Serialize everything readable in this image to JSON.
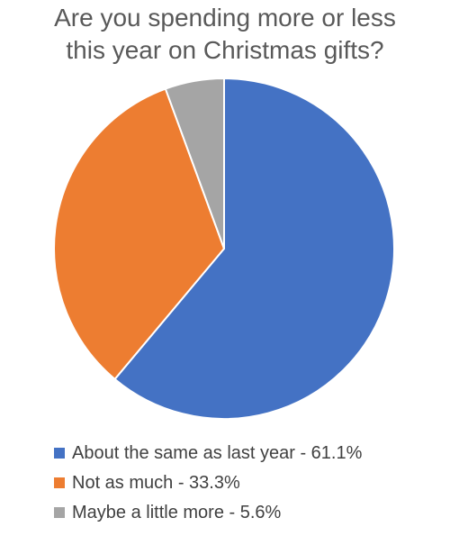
{
  "chart_data": {
    "type": "pie",
    "title_lines": [
      "Are you spending more or less",
      "this year on Christmas gifts?"
    ],
    "slices": [
      {
        "label": "About the same as last year - 61.1%",
        "value": 61.1,
        "color": "#4472C4"
      },
      {
        "label": "Not as much - 33.3%",
        "value": 33.3,
        "color": "#ED7D31"
      },
      {
        "label": "Maybe a little more - 5.6%",
        "value": 5.6,
        "color": "#A5A5A5"
      }
    ],
    "legend_position": "bottom",
    "slice_border_color": "#ffffff"
  }
}
